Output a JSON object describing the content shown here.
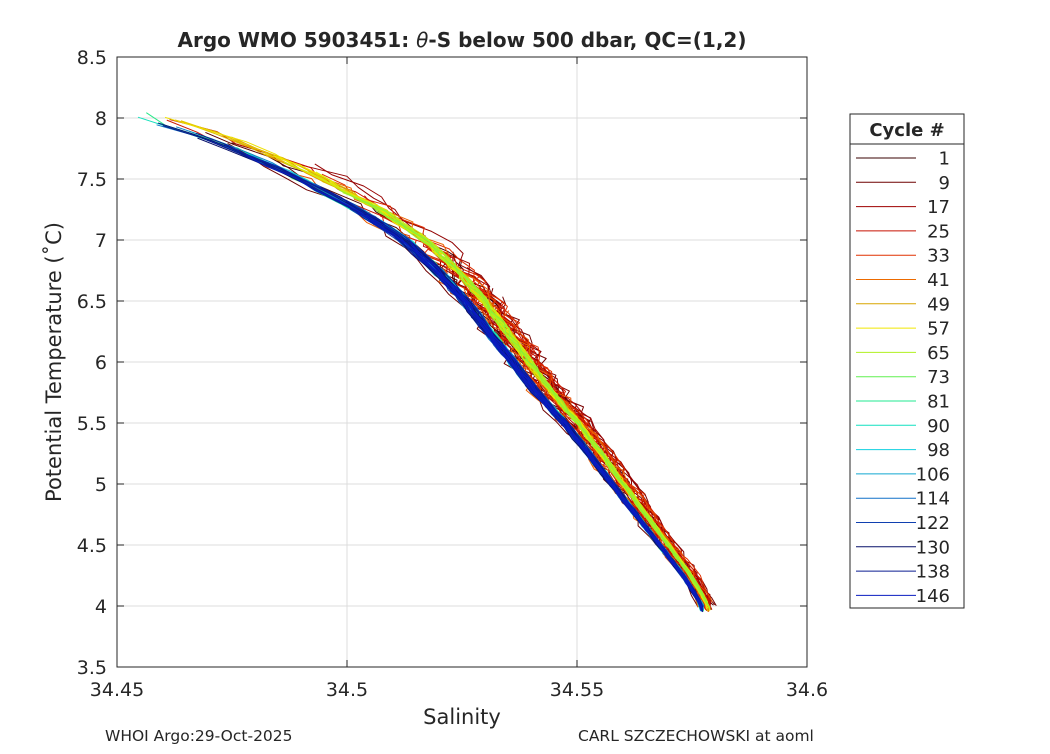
{
  "chart_data": {
    "type": "line",
    "title_prefix": "Argo WMO 5903451: ",
    "title_theta": "θ",
    "title_suffix": "-S below 500 dbar,  QC=(1,2)",
    "xlabel": "Salinity",
    "ylabel": "Potential Temperature (˚C)",
    "xlim": [
      34.45,
      34.6
    ],
    "ylim": [
      3.5,
      8.5
    ],
    "xticks": [
      "34.45",
      "34.5",
      "34.55",
      "34.6"
    ],
    "yticks": [
      "3.5",
      "4",
      "4.5",
      "5",
      "5.5",
      "6",
      "6.5",
      "7",
      "7.5",
      "8",
      "8.5"
    ],
    "grid": true,
    "legend": {
      "title": "Cycle #",
      "placement": "right",
      "entries": [
        {
          "label": "1",
          "color": "#3a0000"
        },
        {
          "label": "9",
          "color": "#6e0000"
        },
        {
          "label": "17",
          "color": "#9e0000"
        },
        {
          "label": "25",
          "color": "#c81000"
        },
        {
          "label": "33",
          "color": "#e03000"
        },
        {
          "label": "41",
          "color": "#ec6a00"
        },
        {
          "label": "49",
          "color": "#d8a600"
        },
        {
          "label": "57",
          "color": "#f0e800"
        },
        {
          "label": "65",
          "color": "#b0f020"
        },
        {
          "label": "73",
          "color": "#60f050"
        },
        {
          "label": "81",
          "color": "#20e890"
        },
        {
          "label": "90",
          "color": "#10e0c0"
        },
        {
          "label": "98",
          "color": "#10d0e0"
        },
        {
          "label": "106",
          "color": "#10a8d0"
        },
        {
          "label": "114",
          "color": "#1070c8"
        },
        {
          "label": "122",
          "color": "#1040b0"
        },
        {
          "label": "130",
          "color": "#08106a"
        },
        {
          "label": "138",
          "color": "#0a1c90"
        },
        {
          "label": "146",
          "color": "#0a1cc0"
        }
      ]
    },
    "mean_profile": [
      {
        "s": 34.459,
        "t": 8.0
      },
      {
        "s": 34.475,
        "t": 7.8
      },
      {
        "s": 34.49,
        "t": 7.55
      },
      {
        "s": 34.505,
        "t": 7.25
      },
      {
        "s": 34.515,
        "t": 7.0
      },
      {
        "s": 34.522,
        "t": 6.75
      },
      {
        "s": 34.528,
        "t": 6.5
      },
      {
        "s": 34.533,
        "t": 6.25
      },
      {
        "s": 34.538,
        "t": 6.0
      },
      {
        "s": 34.543,
        "t": 5.75
      },
      {
        "s": 34.549,
        "t": 5.5
      },
      {
        "s": 34.554,
        "t": 5.25
      },
      {
        "s": 34.559,
        "t": 5.0
      },
      {
        "s": 34.564,
        "t": 4.75
      },
      {
        "s": 34.569,
        "t": 4.5
      },
      {
        "s": 34.574,
        "t": 4.25
      },
      {
        "s": 34.578,
        "t": 4.0
      }
    ]
  },
  "footer": {
    "left": "WHOI Argo:29-Oct-2025",
    "right": "CARL SZCZECHOWSKI at aoml"
  }
}
